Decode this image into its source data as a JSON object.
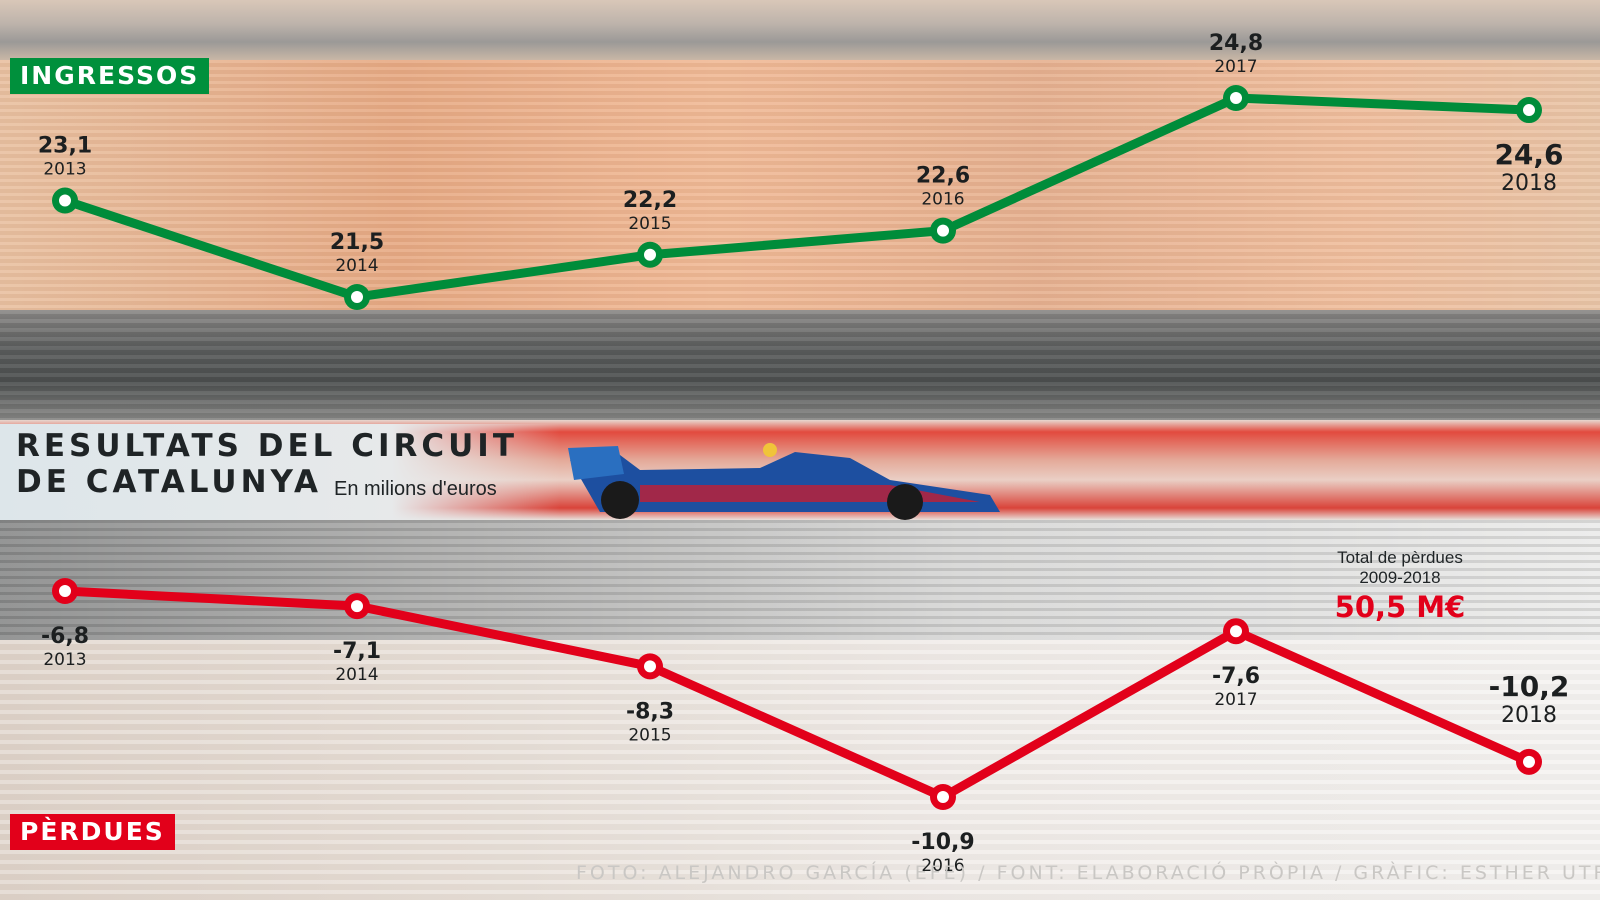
{
  "chart_data": [
    {
      "type": "line",
      "title": "INGRESSOS",
      "categories": [
        "2013",
        "2014",
        "2015",
        "2016",
        "2017",
        "2018"
      ],
      "values": [
        23.1,
        21.5,
        22.2,
        22.6,
        24.8,
        24.6
      ],
      "value_labels": [
        "23,1",
        "21,5",
        "22,2",
        "22,6",
        "24,8",
        "24,6"
      ],
      "color": "#008c3a",
      "ylim": [
        21.5,
        24.8
      ],
      "grid": false,
      "legend": "none"
    },
    {
      "type": "line",
      "title": "PÈRDUES",
      "categories": [
        "2013",
        "2014",
        "2015",
        "2016",
        "2017",
        "2018"
      ],
      "values": [
        -6.8,
        -7.1,
        -8.3,
        -10.9,
        -7.6,
        -10.2
      ],
      "value_labels": [
        "-6,8",
        "-7,1",
        "-8,3",
        "-10,9",
        "-7,6",
        "-10,2"
      ],
      "color": "#e2001a",
      "ylim": [
        -10.9,
        -6.8
      ],
      "grid": false,
      "legend": "none"
    }
  ],
  "header": {
    "title_line1": "RESULTATS DEL CIRCUIT",
    "title_line2": "DE CATALUNYA",
    "subtitle": "En milions d'euros"
  },
  "total_losses": {
    "label": "Total de pèrdues",
    "period": "2009-2018",
    "value": "50,5 M€"
  },
  "credits": "FOTO: ALEJANDRO GARCÍA (EFE) / FONT: ELABORACIÓ PRÒPIA / GRÀFIC: ESTHER UTRILL",
  "colors": {
    "income": "#008c3a",
    "losses": "#e2001a",
    "background_warm": "#e8b48c",
    "background_grey": "#5c5e5e"
  }
}
